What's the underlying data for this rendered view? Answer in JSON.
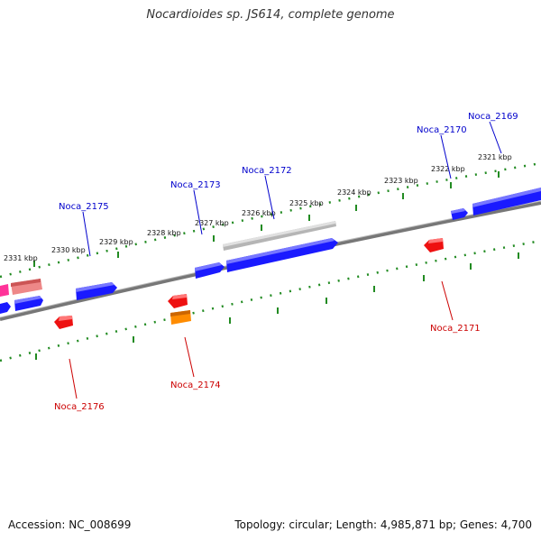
{
  "header": {
    "title": "Nocardioides sp. JS614, complete genome"
  },
  "footer": {
    "accession": "Accession: NC_008699",
    "stats": "Topology: circular; Length: 4,985,871 bp; Genes: 4,700"
  },
  "colors": {
    "forward_gene": "#1a1aff",
    "reverse_gene": "#ee1111",
    "rna_gene": "#ff8c00",
    "pseudo_gene": "#aaaaaa",
    "misc_pink": "#ff3399",
    "misc_salmon": "#ee8888",
    "backbone": "#777777",
    "tick_green": "#228b22",
    "label_blue": "#0000cc",
    "label_red": "#cc0000"
  },
  "map": {
    "ticks": [
      "2321 kbp",
      "2322 kbp",
      "2323 kbp",
      "2324 kbp",
      "2325 kbp",
      "2326 kbp",
      "2327 kbp",
      "2328 kbp",
      "2329 kbp",
      "2330 kbp",
      "2331 kbp"
    ],
    "genes_forward": [
      {
        "label": "Noca_2169"
      },
      {
        "label": "Noca_2170"
      },
      {
        "label": "Noca_2172"
      },
      {
        "label": "Noca_2173"
      },
      {
        "label": "Noca_2175"
      }
    ],
    "genes_reverse": [
      {
        "label": "Noca_2171"
      },
      {
        "label": "Noca_2174"
      },
      {
        "label": "Noca_2176"
      }
    ]
  }
}
